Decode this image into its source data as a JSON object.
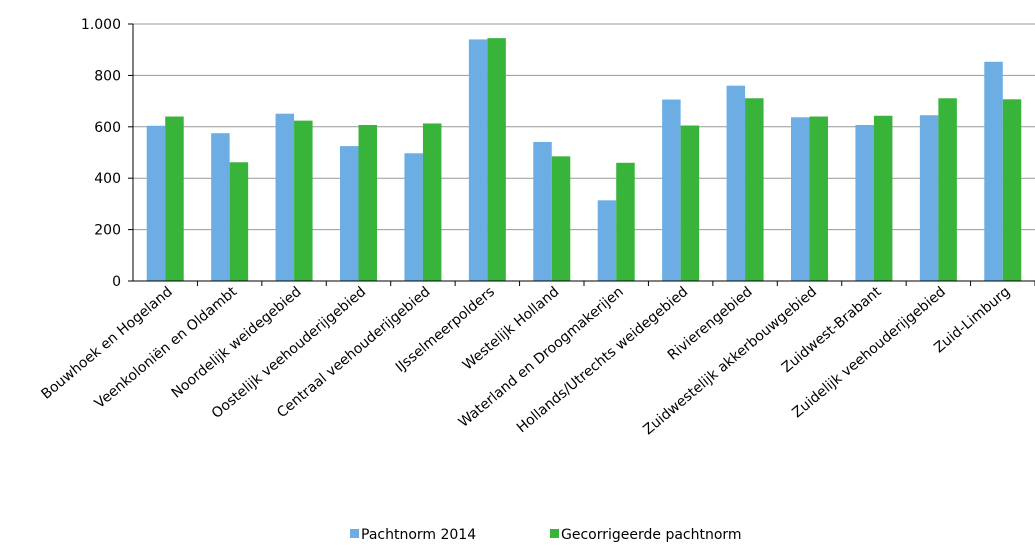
{
  "chart_data": {
    "type": "bar",
    "categories": [
      "Bouwhoek en Hogeland",
      "Veenkoloniën en Oldambt",
      "Noordelijk weidegebied",
      "Oostelijk veehouderijgebied",
      "Centraal veehouderijgebied",
      "IJsselmeerpolders",
      "Westelijk Holland",
      "Waterland en Droogmakerijen",
      "Hollands/Utrechts weidegebied",
      "Rivierengebied",
      "Zuidwestelijk akkerbouwgebied",
      "Zuidwest-Brabant",
      "Zuidelijk veehouderijgebied",
      "Zuid-Limburg"
    ],
    "series": [
      {
        "name": "Pachtnorm 2014",
        "color": "#6caee4",
        "values": [
          604,
          575,
          651,
          525,
          497,
          940,
          541,
          314,
          706,
          760,
          637,
          607,
          645,
          853
        ]
      },
      {
        "name": "Gecorrigeerde pachtnorm",
        "color": "#38b43a",
        "values": [
          640,
          462,
          624,
          607,
          613,
          945,
          485,
          460,
          605,
          711,
          640,
          643,
          711,
          707
        ]
      }
    ],
    "ylim": [
      0,
      1000
    ],
    "yticks": [
      0,
      200,
      400,
      600,
      800,
      {
        "value": 1000,
        "label": "1.000"
      }
    ],
    "grid": true,
    "legend": "bottom"
  }
}
